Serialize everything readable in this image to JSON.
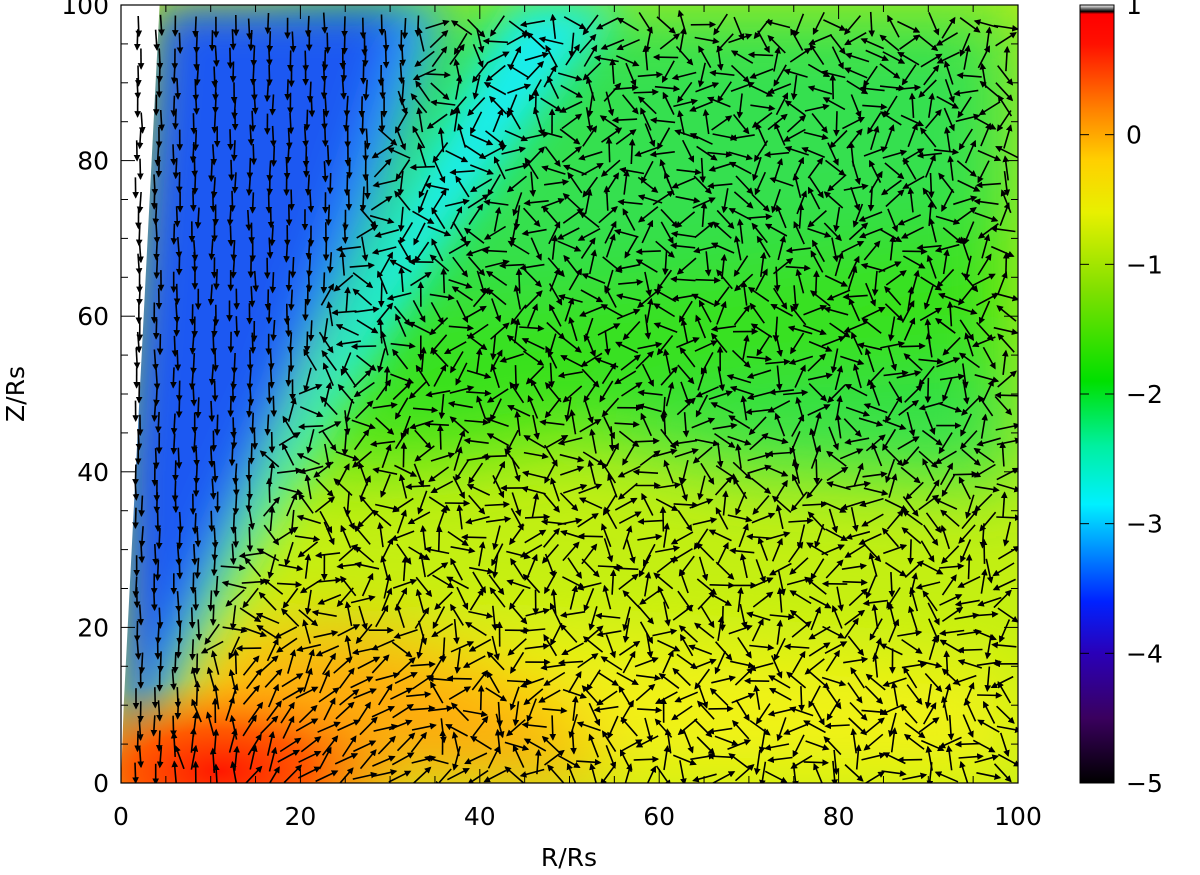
{
  "chart_data": {
    "type": "heatmap",
    "title": "",
    "xlabel": "R/Rs",
    "ylabel": "Z/Rs",
    "xlim": [
      0,
      100
    ],
    "ylim": [
      0,
      100
    ],
    "xticks": [
      "0",
      "20",
      "40",
      "60",
      "80",
      "100"
    ],
    "yticks": [
      "0",
      "20",
      "40",
      "60",
      "80",
      "100"
    ],
    "grid": false,
    "overlay": "velocity field arrows (black)",
    "colorbar": {
      "range": [
        -5,
        1
      ],
      "ticks": [
        "1",
        "0",
        "−1",
        "−2",
        "−3",
        "−4",
        "−5"
      ],
      "colormap": "rainbow (black-purple-blue-cyan-green-yellow-red, white at top)",
      "stops": [
        {
          "value": -5.0,
          "color": "#000000"
        },
        {
          "value": -4.5,
          "color": "#3a005e"
        },
        {
          "value": -4.0,
          "color": "#2a00b8"
        },
        {
          "value": -3.6,
          "color": "#0022ff"
        },
        {
          "value": -3.2,
          "color": "#0090ff"
        },
        {
          "value": -2.85,
          "color": "#00f0ff"
        },
        {
          "value": -2.4,
          "color": "#00f0a0"
        },
        {
          "value": -1.9,
          "color": "#00e000"
        },
        {
          "value": -1.2,
          "color": "#80e000"
        },
        {
          "value": -0.6,
          "color": "#e8f000"
        },
        {
          "value": -0.2,
          "color": "#ffd000"
        },
        {
          "value": 0.2,
          "color": "#ff8000"
        },
        {
          "value": 0.7,
          "color": "#ff1000"
        },
        {
          "value": 0.93,
          "color": "#ff0000"
        },
        {
          "value": 0.95,
          "color": "#000000"
        },
        {
          "value": 1.0,
          "color": "#ffffff"
        }
      ]
    },
    "field_colors": {
      "funnel_blue": "#1c58f2",
      "funnel_edge_light": "#2fa0ff",
      "cyan_band": "#12eef5",
      "upper_green": "#35e04f",
      "mid_green": "#38e11e",
      "lower_yellow_green": "#c3ef12",
      "yellow": "#f2f212",
      "orange": "#ffa80a",
      "red_core": "#ff2a00",
      "empty_axis_region": "#ffffff"
    },
    "arrow_grid": {
      "x_start": 2,
      "x_end": 100,
      "x_step": 2.1,
      "y_start": 1,
      "y_end": 99,
      "y_step": 2.05
    }
  }
}
